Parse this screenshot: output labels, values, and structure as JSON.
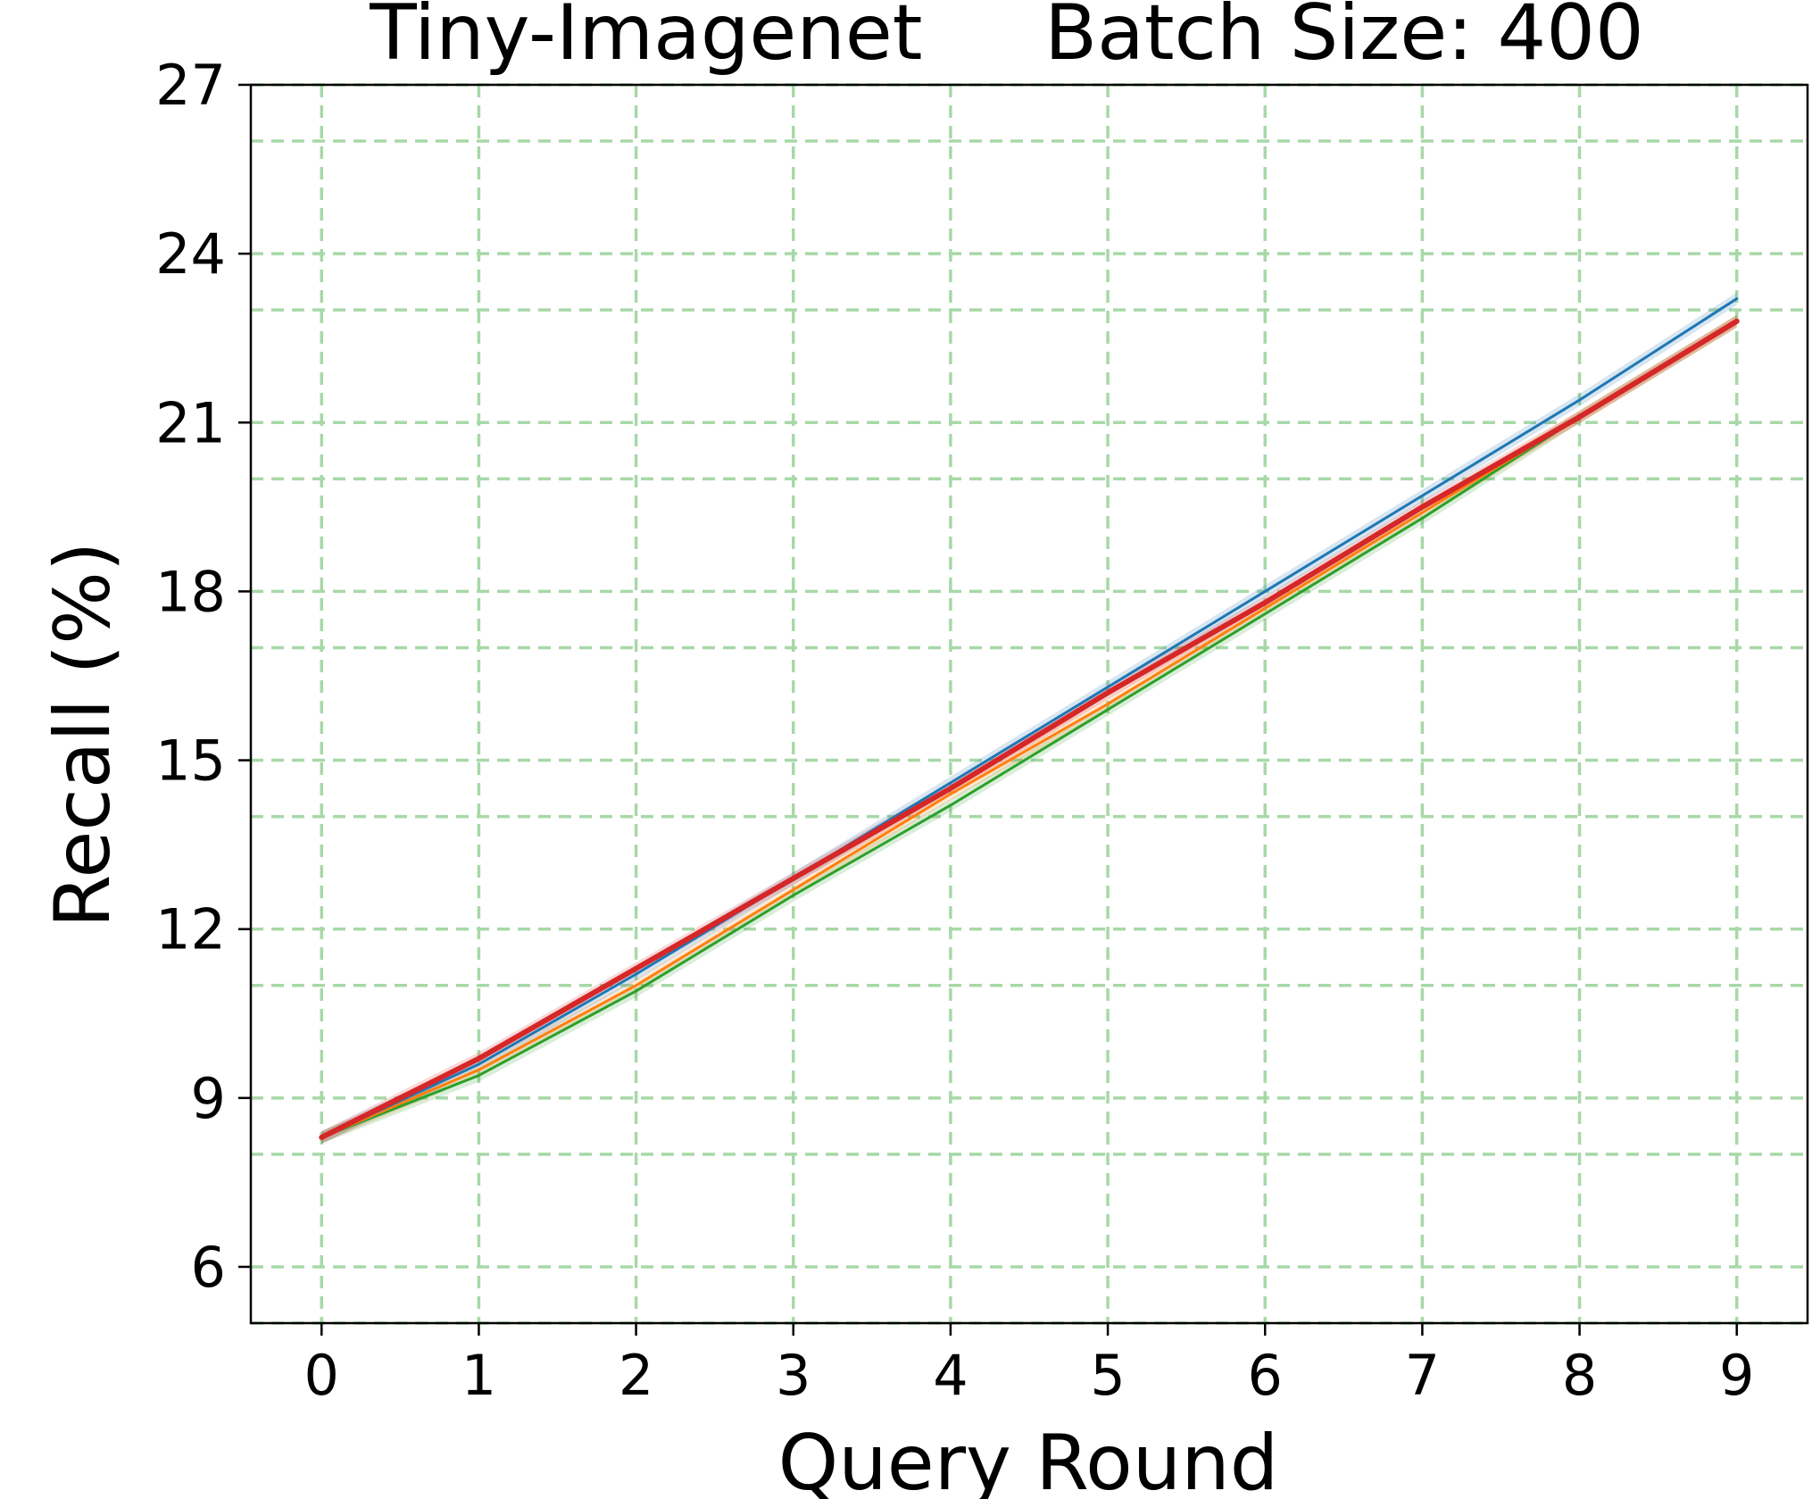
{
  "chart_data": {
    "type": "line",
    "title": "Tiny-Imagenet     Batch Size: 400",
    "xlabel": "Query Round",
    "ylabel": "Recall (%)",
    "xlim": [
      -0.45,
      9.45
    ],
    "ylim": [
      5,
      27
    ],
    "xticks": [
      "0",
      "1",
      "2",
      "3",
      "4",
      "5",
      "6",
      "7",
      "8",
      "9"
    ],
    "yticks": [
      "6",
      "9",
      "12",
      "15",
      "18",
      "21",
      "24",
      "27"
    ],
    "grid": true,
    "grid_style": "dashed",
    "grid_color": "#a8d8a8",
    "legend": "none",
    "x": [
      0,
      1,
      2,
      3,
      4,
      5,
      6,
      7,
      8,
      9
    ],
    "series": [
      {
        "color": "#2ca02c",
        "values": [
          8.3,
          9.4,
          10.9,
          12.6,
          14.2,
          15.9,
          17.6,
          19.3,
          21.1,
          22.8
        ]
      },
      {
        "color": "#ff7f0e",
        "values": [
          8.3,
          9.5,
          11.0,
          12.7,
          14.4,
          16.0,
          17.7,
          19.4,
          21.1,
          22.8
        ]
      },
      {
        "color": "#1f77b4",
        "values": [
          8.3,
          9.6,
          11.2,
          12.9,
          14.6,
          16.3,
          18.0,
          19.7,
          21.4,
          23.2
        ]
      },
      {
        "color": "#d62728",
        "values": [
          8.3,
          9.7,
          11.3,
          12.9,
          14.5,
          16.2,
          17.8,
          19.5,
          21.1,
          22.8
        ]
      }
    ]
  }
}
